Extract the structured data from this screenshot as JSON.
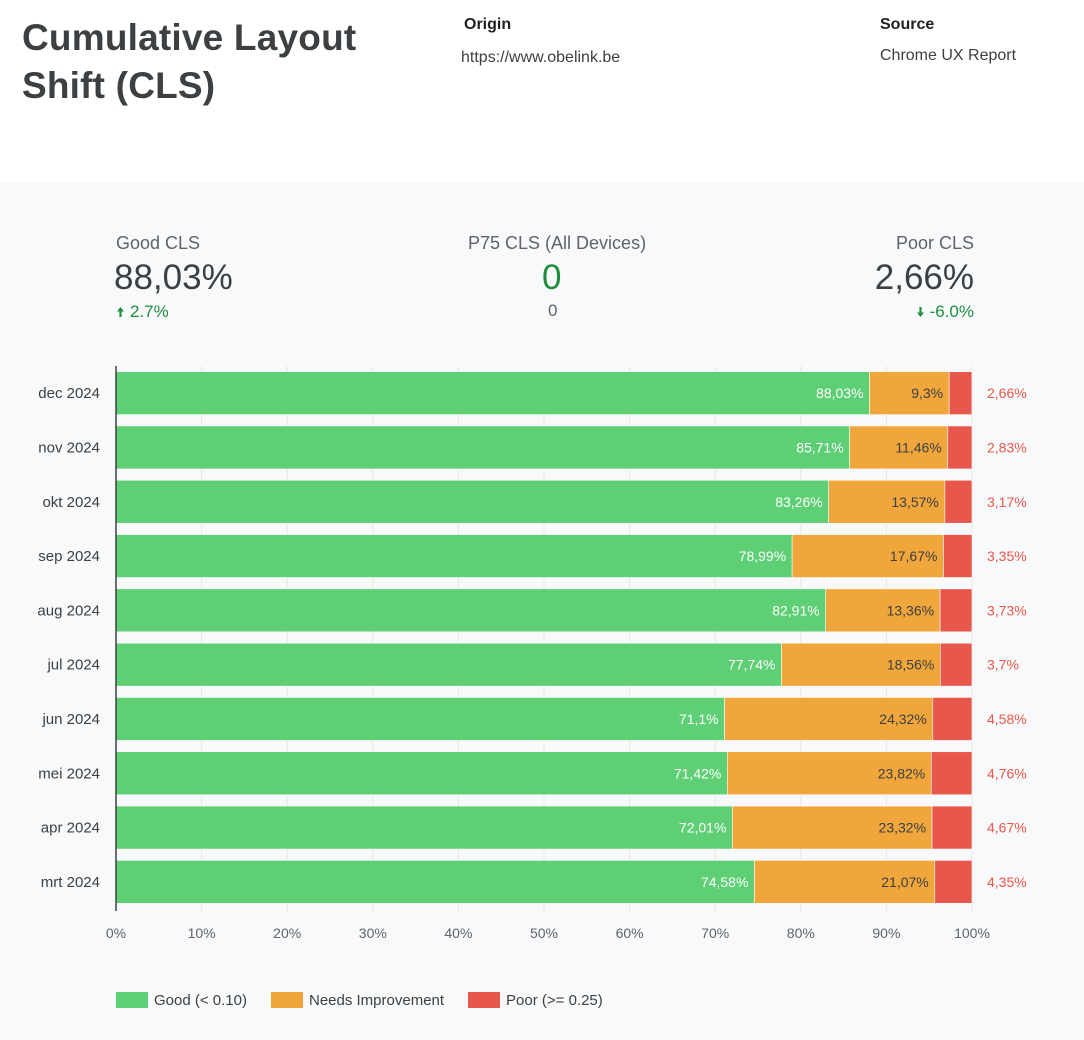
{
  "header": {
    "title_line1": "Cumulative Layout",
    "title_line2": "Shift (CLS)",
    "origin_label": "Origin",
    "origin_value": "https://www.obelink.be",
    "source_label": "Source",
    "source_value": "Chrome UX Report"
  },
  "kpis": {
    "good": {
      "label": "Good CLS",
      "value": "88,03%",
      "delta": "2.7%",
      "arrow": "up"
    },
    "p75": {
      "label": "P75 CLS (All Devices)",
      "value": "0",
      "sub": "0"
    },
    "poor": {
      "label": "Poor CLS",
      "value": "2,66%",
      "delta": "-6.0%",
      "arrow": "down"
    }
  },
  "colors": {
    "good": "#5ecf74",
    "needs_improvement": "#f0a63b",
    "poor": "#e8574b",
    "poor_label": "#e8574b",
    "kpi_green": "#1e8e3e"
  },
  "legend": [
    {
      "label": "Good (< 0.10)",
      "color": "#5ecf74"
    },
    {
      "label": "Needs Improvement",
      "color": "#f0a63b"
    },
    {
      "label": "Poor (>= 0.25)",
      "color": "#e8574b"
    }
  ],
  "chart_data": {
    "type": "bar",
    "orientation": "horizontal",
    "stacked": true,
    "categories": [
      "dec 2024",
      "nov 2024",
      "okt 2024",
      "sep 2024",
      "aug 2024",
      "jul 2024",
      "jun 2024",
      "mei 2024",
      "apr 2024",
      "mrt 2024"
    ],
    "series": [
      {
        "name": "Good (< 0.10)",
        "values": [
          88.03,
          85.71,
          83.26,
          78.99,
          82.91,
          77.74,
          71.1,
          71.42,
          72.01,
          74.58
        ],
        "labels": [
          "88,03%",
          "85,71%",
          "83,26%",
          "78,99%",
          "82,91%",
          "77,74%",
          "71,1%",
          "71,42%",
          "72,01%",
          "74,58%"
        ]
      },
      {
        "name": "Needs Improvement",
        "values": [
          9.3,
          11.46,
          13.57,
          17.67,
          13.36,
          18.56,
          24.32,
          23.82,
          23.32,
          21.07
        ],
        "labels": [
          "9,3%",
          "11,46%",
          "13,57%",
          "17,67%",
          "13,36%",
          "18,56%",
          "24,32%",
          "23,82%",
          "23,32%",
          "21,07%"
        ]
      },
      {
        "name": "Poor (>= 0.25)",
        "values": [
          2.66,
          2.83,
          3.17,
          3.35,
          3.73,
          3.7,
          4.58,
          4.76,
          4.67,
          4.35
        ],
        "labels": [
          "2,66%",
          "2,83%",
          "3,17%",
          "3,35%",
          "3,73%",
          "3,7%",
          "4,58%",
          "4,76%",
          "4,67%",
          "4,35%"
        ]
      }
    ],
    "x_ticks": [
      "0%",
      "10%",
      "20%",
      "30%",
      "40%",
      "50%",
      "60%",
      "70%",
      "80%",
      "90%",
      "100%"
    ],
    "xlim": [
      0,
      100
    ],
    "grid": true,
    "legend_position": "bottom-left"
  }
}
